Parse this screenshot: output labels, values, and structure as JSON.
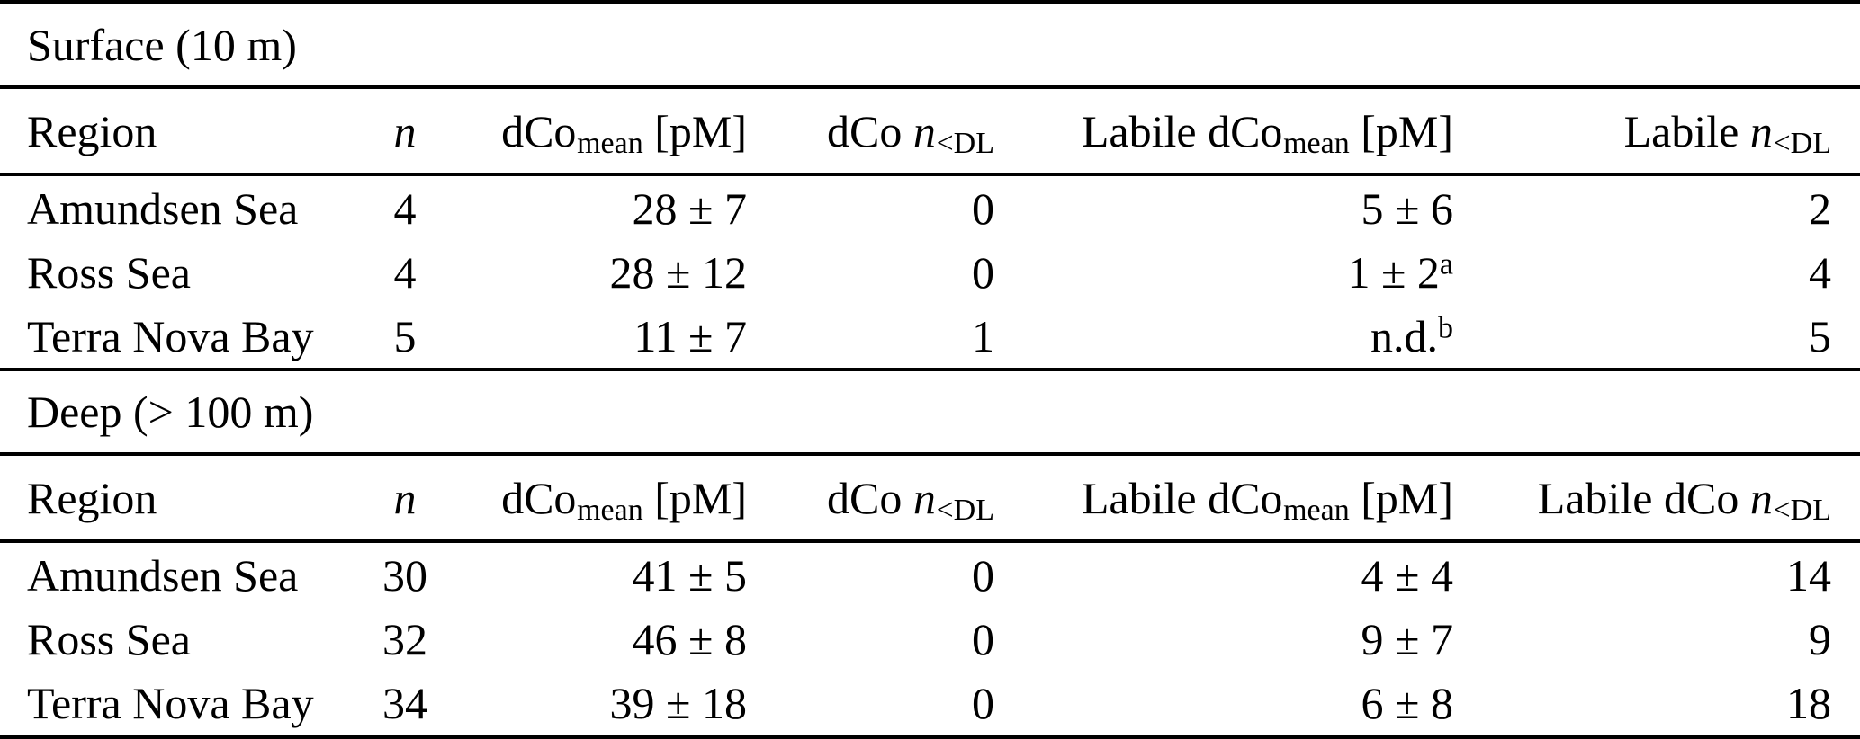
{
  "colors": {
    "text": "#000000",
    "rule": "#000000",
    "background": "#ffffff"
  },
  "table": {
    "sections": [
      {
        "title": "Surface (10 m)",
        "columns": [
          {
            "id": "region",
            "align": "left",
            "segments": [
              {
                "t": "Region"
              }
            ]
          },
          {
            "id": "n",
            "align": "center",
            "segments": [
              {
                "t": "n",
                "s": "i"
              }
            ]
          },
          {
            "id": "dco-mean",
            "align": "right",
            "segments": [
              {
                "t": "dCo"
              },
              {
                "t": "mean",
                "s": "sub"
              },
              {
                "t": " [pM]"
              }
            ]
          },
          {
            "id": "dco-n-below-dl",
            "align": "right",
            "segments": [
              {
                "t": "dCo "
              },
              {
                "t": "n",
                "s": "i"
              },
              {
                "t": "<DL",
                "s": "sub"
              }
            ]
          },
          {
            "id": "labile-dco-mean",
            "align": "right",
            "segments": [
              {
                "t": "Labile dCo"
              },
              {
                "t": "mean",
                "s": "sub"
              },
              {
                "t": " [pM]"
              }
            ]
          },
          {
            "id": "labile-n-below-dl",
            "align": "right",
            "segments": [
              {
                "t": "Labile "
              },
              {
                "t": "n",
                "s": "i"
              },
              {
                "t": "<DL",
                "s": "sub"
              }
            ]
          }
        ],
        "rows": [
          [
            [
              {
                "t": "Amundsen Sea"
              }
            ],
            [
              {
                "t": "4"
              }
            ],
            [
              {
                "t": "28 ± 7"
              }
            ],
            [
              {
                "t": "0"
              }
            ],
            [
              {
                "t": "5 ± 6"
              }
            ],
            [
              {
                "t": "2"
              }
            ]
          ],
          [
            [
              {
                "t": "Ross Sea"
              }
            ],
            [
              {
                "t": "4"
              }
            ],
            [
              {
                "t": "28 ± 12"
              }
            ],
            [
              {
                "t": "0"
              }
            ],
            [
              {
                "t": "1 ± 2"
              },
              {
                "t": "a",
                "s": "sup"
              }
            ],
            [
              {
                "t": "4"
              }
            ]
          ],
          [
            [
              {
                "t": "Terra Nova Bay"
              }
            ],
            [
              {
                "t": "5"
              }
            ],
            [
              {
                "t": "11 ± 7"
              }
            ],
            [
              {
                "t": "1"
              }
            ],
            [
              {
                "t": "n.d."
              },
              {
                "t": "b",
                "s": "sup"
              }
            ],
            [
              {
                "t": "5"
              }
            ]
          ]
        ]
      },
      {
        "title": "Deep (> 100 m)",
        "columns": [
          {
            "id": "region",
            "align": "left",
            "segments": [
              {
                "t": "Region"
              }
            ]
          },
          {
            "id": "n",
            "align": "center",
            "segments": [
              {
                "t": "n",
                "s": "i"
              }
            ]
          },
          {
            "id": "dco-mean",
            "align": "right",
            "segments": [
              {
                "t": "dCo"
              },
              {
                "t": "mean",
                "s": "sub"
              },
              {
                "t": " [pM]"
              }
            ]
          },
          {
            "id": "dco-n-below-dl",
            "align": "right",
            "segments": [
              {
                "t": "dCo "
              },
              {
                "t": "n",
                "s": "i"
              },
              {
                "t": "<DL",
                "s": "sub"
              }
            ]
          },
          {
            "id": "labile-dco-mean",
            "align": "right",
            "segments": [
              {
                "t": "Labile dCo"
              },
              {
                "t": "mean",
                "s": "sub"
              },
              {
                "t": " [pM]"
              }
            ]
          },
          {
            "id": "labile-dco-n-below-dl",
            "align": "right",
            "segments": [
              {
                "t": "Labile dCo "
              },
              {
                "t": "n",
                "s": "i"
              },
              {
                "t": "<DL",
                "s": "sub"
              }
            ]
          }
        ],
        "rows": [
          [
            [
              {
                "t": "Amundsen Sea"
              }
            ],
            [
              {
                "t": "30"
              }
            ],
            [
              {
                "t": "41 ± 5"
              }
            ],
            [
              {
                "t": "0"
              }
            ],
            [
              {
                "t": "4 ± 4"
              }
            ],
            [
              {
                "t": "14"
              }
            ]
          ],
          [
            [
              {
                "t": "Ross Sea"
              }
            ],
            [
              {
                "t": "32"
              }
            ],
            [
              {
                "t": "46 ± 8"
              }
            ],
            [
              {
                "t": "0"
              }
            ],
            [
              {
                "t": "9 ± 7"
              }
            ],
            [
              {
                "t": "9"
              }
            ]
          ],
          [
            [
              {
                "t": "Terra Nova Bay"
              }
            ],
            [
              {
                "t": "34"
              }
            ],
            [
              {
                "t": "39 ± 18"
              }
            ],
            [
              {
                "t": "0"
              }
            ],
            [
              {
                "t": "6 ± 8"
              }
            ],
            [
              {
                "t": "18"
              }
            ]
          ]
        ]
      }
    ]
  }
}
